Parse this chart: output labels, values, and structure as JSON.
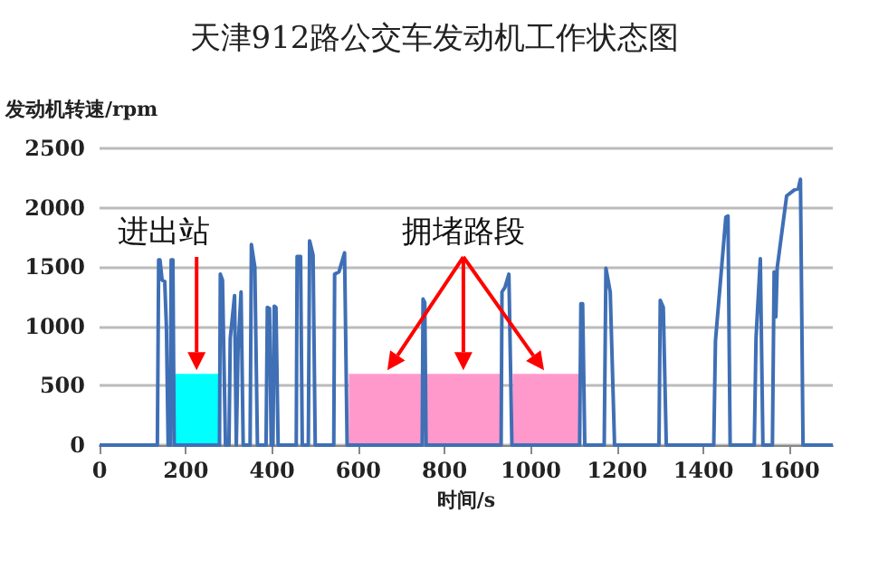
{
  "chart_data": {
    "type": "line",
    "title": "天津912路公交车发动机工作状态图",
    "xlabel": "时间/s",
    "ylabel": "发动机转速/rpm",
    "annotations": [
      "进出站",
      "拥堵路段"
    ],
    "xlim": [
      0,
      1700
    ],
    "xticks": [
      0,
      200,
      400,
      600,
      800,
      1000,
      1200,
      1400,
      1600
    ],
    "ylim": [
      0,
      2500
    ],
    "yticks": [
      0,
      500,
      1000,
      1500,
      2000,
      2500
    ],
    "grid": "y",
    "marker": "none",
    "line_style": "solid",
    "series": [
      {
        "type": "area",
        "color": "#00ffff",
        "x": [
          175,
          275
        ],
        "values": [
          600,
          600
        ]
      },
      {
        "type": "area",
        "color": "#ff99cc",
        "x": [
          578,
          747
        ],
        "values": [
          600,
          600
        ]
      },
      {
        "type": "area",
        "color": "#ff99cc",
        "x": [
          757,
          930
        ],
        "values": [
          600,
          600
        ]
      },
      {
        "type": "area",
        "color": "#ff99cc",
        "x": [
          958,
          1113
        ],
        "values": [
          600,
          600
        ]
      },
      {
        "color": "#3f6fb5",
        "x": [
          0,
          134,
          137,
          140,
          145,
          151,
          155,
          159,
          164,
          166,
          170,
          173,
          278,
          280,
          285,
          292,
          300,
          303,
          313,
          317,
          321,
          328,
          333,
          349,
          352,
          357,
          360,
          366,
          386,
          389,
          394,
          398,
          402,
          405,
          409,
          414,
          456,
          458,
          466,
          470,
          484,
          487,
          495,
          500,
          543,
          545,
          555,
          568,
          574,
          748,
          750,
          754,
          757,
          931,
          933,
          940,
          949,
          956,
          1113,
          1116,
          1120,
          1125,
          1170,
          1174,
          1184,
          1194,
          1297,
          1300,
          1307,
          1314,
          1424,
          1428,
          1452,
          1457,
          1462,
          1518,
          1522,
          1532,
          1538,
          1560,
          1564,
          1568,
          1571,
          1593,
          1611,
          1620,
          1625,
          1631,
          1700
        ],
        "values": [
          0,
          0,
          1560,
          1560,
          1390,
          1380,
          1000,
          0,
          0,
          1560,
          1560,
          0,
          0,
          1440,
          1390,
          0,
          0,
          900,
          1260,
          0,
          800,
          1290,
          0,
          0,
          1690,
          1570,
          1500,
          0,
          0,
          1160,
          1150,
          0,
          0,
          1170,
          1160,
          0,
          0,
          1590,
          1590,
          0,
          0,
          1720,
          1600,
          0,
          0,
          1440,
          1460,
          1620,
          0,
          0,
          1230,
          1200,
          0,
          0,
          1290,
          1330,
          1440,
          0,
          0,
          1190,
          1190,
          0,
          0,
          1490,
          1290,
          0,
          0,
          1220,
          1160,
          0,
          0,
          880,
          1920,
          1930,
          0,
          0,
          900,
          1570,
          0,
          0,
          1460,
          1080,
          1490,
          2100,
          2150,
          2160,
          2240,
          0,
          0
        ]
      }
    ]
  }
}
